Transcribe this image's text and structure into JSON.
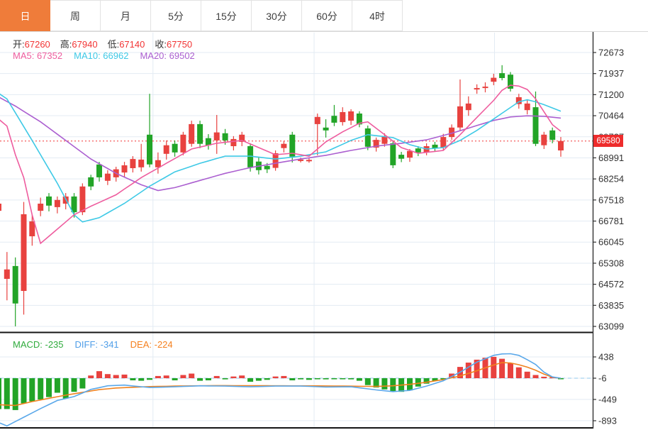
{
  "toolbar": {
    "tabs": [
      {
        "name": "tab-day",
        "label": "日",
        "active": true
      },
      {
        "name": "tab-week",
        "label": "周",
        "active": false
      },
      {
        "name": "tab-month",
        "label": "月",
        "active": false
      },
      {
        "name": "tab-5min",
        "label": "5分",
        "active": false
      },
      {
        "name": "tab-15min",
        "label": "15分",
        "active": false
      },
      {
        "name": "tab-30min",
        "label": "30分",
        "active": false
      },
      {
        "name": "tab-60min",
        "label": "60分",
        "active": false
      },
      {
        "name": "tab-4hour",
        "label": "4时",
        "active": false
      }
    ]
  },
  "overlay": {
    "ohlc": [
      {
        "label": "开:",
        "value": "67260"
      },
      {
        "label": "高:",
        "value": "67940"
      },
      {
        "label": "低:",
        "value": "67140"
      },
      {
        "label": "收:",
        "value": "67750"
      }
    ],
    "ma": [
      {
        "label": "MA5:",
        "value": "67352",
        "color": "#ee5c9e"
      },
      {
        "label": "MA10:",
        "value": "66962",
        "color": "#3ec9e6"
      },
      {
        "label": "MA20:",
        "value": "69502",
        "color": "#ab5fd0"
      }
    ]
  },
  "price_axis": {
    "last_price": "69580"
  },
  "macd_overlay": [
    {
      "label": "MACD:",
      "value": "-235",
      "color": "#2fab3c"
    },
    {
      "label": "DIFF:",
      "value": "-341",
      "color": "#4f9ee8"
    },
    {
      "label": "DEA:",
      "value": "-224",
      "color": "#f5801e"
    }
  ],
  "chart_data": {
    "type": "candlestick",
    "title": "",
    "candle_format": "[open,high,low,close]",
    "y_axis": {
      "ticks": [
        72673,
        71937,
        71200,
        70464,
        69727,
        68991,
        68254,
        67518,
        66781,
        66045,
        65308,
        64572,
        63835,
        63099
      ]
    },
    "macd_axis": {
      "ticks": [
        438,
        -6,
        -449,
        -893
      ]
    },
    "current_price": 69580,
    "vgrid_idx": [
      18.4,
      37.6,
      59.1
    ],
    "colors": {
      "up": "#e8423f",
      "down": "#22a427",
      "ma5": "#ee5c9e",
      "ma10": "#3ec9e6",
      "ma20": "#ab5fd0",
      "diff": "#5aa8ea",
      "dea": "#f0821e",
      "grid": "#e3ebf3",
      "dotted": "#f56b6b",
      "badge": "#ee2c2c",
      "axis": "#333333",
      "separator": "#151515",
      "zero_dash": "#90c8ec"
    },
    "candles": [
      [
        67140,
        67450,
        65900,
        67390
      ],
      [
        64760,
        65700,
        64010,
        65090
      ],
      [
        65210,
        65510,
        63100,
        63900
      ],
      [
        64340,
        67450,
        63510,
        67020
      ],
      [
        66250,
        67020,
        65920,
        66770
      ],
      [
        67140,
        67600,
        66950,
        67390
      ],
      [
        67640,
        67760,
        67120,
        67320
      ],
      [
        67270,
        67640,
        67050,
        67520
      ],
      [
        67390,
        67760,
        67190,
        67640
      ],
      [
        67640,
        67760,
        66900,
        67090
      ],
      [
        67090,
        68100,
        66990,
        67990
      ],
      [
        68310,
        68400,
        67860,
        67990
      ],
      [
        68760,
        68850,
        68160,
        68310
      ],
      [
        68190,
        68560,
        68040,
        68440
      ],
      [
        68310,
        68680,
        68160,
        68590
      ],
      [
        68480,
        68850,
        68330,
        68730
      ],
      [
        68630,
        69050,
        68480,
        68950
      ],
      [
        68660,
        69480,
        68510,
        68930
      ],
      [
        69800,
        71230,
        68660,
        68760
      ],
      [
        68660,
        69180,
        68440,
        68910
      ],
      [
        69130,
        69600,
        68930,
        69430
      ],
      [
        69480,
        69600,
        69030,
        69180
      ],
      [
        69180,
        69900,
        69080,
        69800
      ],
      [
        69480,
        70290,
        69380,
        70170
      ],
      [
        70170,
        70290,
        69330,
        69480
      ],
      [
        69680,
        69820,
        69280,
        69430
      ],
      [
        69600,
        70490,
        69130,
        69880
      ],
      [
        69850,
        70000,
        69450,
        69600
      ],
      [
        69400,
        69750,
        69250,
        69650
      ],
      [
        69550,
        69900,
        69400,
        69800
      ],
      [
        69400,
        69500,
        68510,
        68660
      ],
      [
        68860,
        69030,
        68410,
        68560
      ],
      [
        68710,
        68810,
        68460,
        68590
      ],
      [
        68640,
        69250,
        68540,
        69150
      ],
      [
        69330,
        69580,
        69180,
        69480
      ],
      [
        69800,
        69900,
        68830,
        69030
      ],
      [
        68900,
        69000,
        68830,
        68930
      ],
      [
        68890,
        68990,
        68820,
        68920
      ],
      [
        70170,
        70540,
        69080,
        70420
      ],
      [
        70050,
        70340,
        69700,
        69950
      ],
      [
        70460,
        70840,
        70100,
        70220
      ],
      [
        70240,
        70760,
        70120,
        70590
      ],
      [
        70290,
        70690,
        70140,
        70615
      ],
      [
        70540,
        70620,
        70060,
        70160
      ],
      [
        70020,
        70120,
        69260,
        69380
      ],
      [
        69350,
        69700,
        69210,
        69620
      ],
      [
        69480,
        69850,
        69380,
        69750
      ],
      [
        69500,
        69600,
        68630,
        68730
      ],
      [
        69100,
        69200,
        68840,
        68960
      ],
      [
        69000,
        69300,
        68850,
        69230
      ],
      [
        69320,
        69400,
        69050,
        69180
      ],
      [
        69180,
        69500,
        69080,
        69400
      ],
      [
        69450,
        69550,
        69200,
        69320
      ],
      [
        69350,
        69830,
        69250,
        69720
      ],
      [
        69720,
        70160,
        69620,
        70050
      ],
      [
        70050,
        71730,
        69950,
        70790
      ],
      [
        70660,
        71140,
        70460,
        70890
      ],
      [
        71380,
        71560,
        71230,
        71430
      ],
      [
        71430,
        71630,
        71280,
        71480
      ],
      [
        71650,
        71930,
        71530,
        71790
      ],
      [
        71950,
        72230,
        71700,
        71780
      ],
      [
        71900,
        71990,
        71310,
        71410
      ],
      [
        70870,
        71230,
        70710,
        71110
      ],
      [
        70660,
        71010,
        70510,
        70890
      ],
      [
        70760,
        71310,
        69400,
        69480
      ],
      [
        69430,
        69900,
        69300,
        69800
      ],
      [
        69950,
        70050,
        69500,
        69620
      ],
      [
        69250,
        69720,
        69030,
        69580
      ]
    ],
    "ma5_keypoints": [
      [
        0,
        70350
      ],
      [
        1,
        70100
      ],
      [
        2,
        69100
      ],
      [
        3,
        68300
      ],
      [
        4,
        67000
      ],
      [
        5,
        66000
      ],
      [
        7,
        66500
      ],
      [
        9,
        67000
      ],
      [
        11,
        67300
      ],
      [
        14,
        67700
      ],
      [
        17,
        68300
      ],
      [
        20,
        68800
      ],
      [
        23,
        69300
      ],
      [
        26,
        69500
      ],
      [
        29,
        69600
      ],
      [
        31,
        69350
      ],
      [
        33,
        69100
      ],
      [
        35,
        69150
      ],
      [
        37,
        69050
      ],
      [
        39,
        69550
      ],
      [
        41,
        69900
      ],
      [
        43,
        70200
      ],
      [
        44,
        70250
      ],
      [
        46,
        69800
      ],
      [
        48,
        69350
      ],
      [
        50,
        69150
      ],
      [
        53,
        69250
      ],
      [
        55,
        69800
      ],
      [
        57,
        70400
      ],
      [
        59,
        71000
      ],
      [
        60,
        71350
      ],
      [
        61,
        71530
      ],
      [
        62,
        71500
      ],
      [
        63,
        71380
      ],
      [
        64,
        71050
      ],
      [
        65,
        70600
      ],
      [
        66,
        70150
      ],
      [
        67,
        69920
      ]
    ],
    "ma10_keypoints": [
      [
        0,
        71250
      ],
      [
        1,
        71050
      ],
      [
        4,
        69600
      ],
      [
        7,
        68100
      ],
      [
        9,
        67000
      ],
      [
        10,
        66750
      ],
      [
        12,
        66900
      ],
      [
        15,
        67400
      ],
      [
        18,
        68000
      ],
      [
        21,
        68500
      ],
      [
        24,
        68800
      ],
      [
        27,
        69050
      ],
      [
        30,
        69050
      ],
      [
        33,
        68950
      ],
      [
        36,
        69050
      ],
      [
        39,
        69200
      ],
      [
        42,
        69600
      ],
      [
        44,
        69800
      ],
      [
        47,
        69700
      ],
      [
        49,
        69450
      ],
      [
        51,
        69300
      ],
      [
        53,
        69350
      ],
      [
        55,
        69600
      ],
      [
        57,
        69950
      ],
      [
        59,
        70350
      ],
      [
        61,
        70750
      ],
      [
        62,
        70950
      ],
      [
        63,
        71020
      ],
      [
        64,
        70950
      ],
      [
        65,
        70850
      ],
      [
        67,
        70620
      ]
    ],
    "ma20_keypoints": [
      [
        0,
        71120
      ],
      [
        2,
        70800
      ],
      [
        5,
        70250
      ],
      [
        8,
        69600
      ],
      [
        11,
        68950
      ],
      [
        14,
        68450
      ],
      [
        17,
        68050
      ],
      [
        19,
        67850
      ],
      [
        21,
        67950
      ],
      [
        24,
        68200
      ],
      [
        27,
        68450
      ],
      [
        30,
        68650
      ],
      [
        33,
        68800
      ],
      [
        36,
        68950
      ],
      [
        39,
        69080
      ],
      [
        42,
        69250
      ],
      [
        45,
        69400
      ],
      [
        48,
        69500
      ],
      [
        51,
        69620
      ],
      [
        54,
        69850
      ],
      [
        57,
        70120
      ],
      [
        59,
        70300
      ],
      [
        61,
        70420
      ],
      [
        63,
        70460
      ],
      [
        65,
        70440
      ],
      [
        67,
        70380
      ]
    ],
    "macd": {
      "zero": -6,
      "hist": [
        -650,
        -650,
        -670,
        -530,
        -490,
        -450,
        -400,
        -310,
        -430,
        -290,
        -220,
        50,
        140,
        80,
        60,
        70,
        -50,
        -60,
        -40,
        40,
        50,
        -50,
        60,
        90,
        -60,
        -50,
        40,
        -30,
        30,
        50,
        -80,
        -60,
        -40,
        30,
        40,
        -50,
        -30,
        -40,
        -20,
        -30,
        -20,
        -20,
        -30,
        -60,
        -150,
        -200,
        -240,
        -280,
        -290,
        -260,
        -180,
        -120,
        -60,
        -20,
        90,
        230,
        320,
        380,
        420,
        440,
        400,
        310,
        220,
        130,
        60,
        25,
        15,
        -15
      ],
      "diff_keypoints": [
        [
          0,
          -930
        ],
        [
          1,
          -1000
        ],
        [
          3,
          -820
        ],
        [
          5,
          -640
        ],
        [
          7,
          -470
        ],
        [
          9,
          -390
        ],
        [
          11,
          -240
        ],
        [
          13,
          -165
        ],
        [
          15,
          -150
        ],
        [
          18,
          -200
        ],
        [
          21,
          -185
        ],
        [
          24,
          -165
        ],
        [
          27,
          -170
        ],
        [
          30,
          -185
        ],
        [
          33,
          -170
        ],
        [
          36,
          -170
        ],
        [
          39,
          -190
        ],
        [
          42,
          -185
        ],
        [
          45,
          -250
        ],
        [
          47,
          -285
        ],
        [
          49,
          -260
        ],
        [
          51,
          -170
        ],
        [
          53,
          -60
        ],
        [
          55,
          120
        ],
        [
          57,
          330
        ],
        [
          59,
          470
        ],
        [
          60,
          500
        ],
        [
          61,
          505
        ],
        [
          62,
          470
        ],
        [
          63,
          380
        ],
        [
          64,
          280
        ],
        [
          65,
          120
        ],
        [
          66,
          20
        ],
        [
          67,
          -6
        ]
      ],
      "dea_keypoints": [
        [
          0,
          -560
        ],
        [
          2,
          -575
        ],
        [
          4,
          -495
        ],
        [
          6,
          -425
        ],
        [
          8,
          -360
        ],
        [
          10,
          -300
        ],
        [
          12,
          -245
        ],
        [
          14,
          -210
        ],
        [
          18,
          -180
        ],
        [
          22,
          -168
        ],
        [
          26,
          -160
        ],
        [
          30,
          -162
        ],
        [
          34,
          -165
        ],
        [
          38,
          -166
        ],
        [
          42,
          -172
        ],
        [
          45,
          -178
        ],
        [
          47,
          -165
        ],
        [
          49,
          -135
        ],
        [
          51,
          -90
        ],
        [
          53,
          -35
        ],
        [
          55,
          40
        ],
        [
          57,
          150
        ],
        [
          59,
          270
        ],
        [
          60,
          320
        ],
        [
          61,
          310
        ],
        [
          62,
          275
        ],
        [
          63,
          225
        ],
        [
          64,
          160
        ],
        [
          65,
          80
        ],
        [
          66,
          15
        ],
        [
          67,
          -8
        ]
      ]
    }
  }
}
